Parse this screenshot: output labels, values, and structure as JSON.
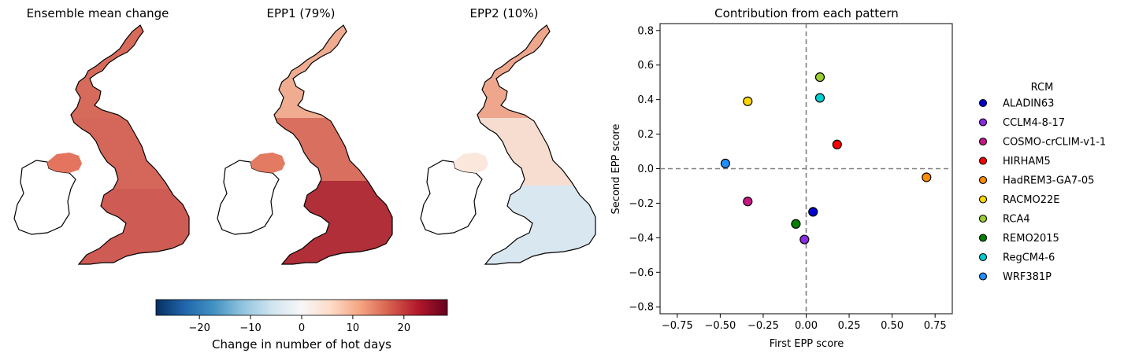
{
  "maps": [
    {
      "title": "Ensemble mean change",
      "fill": "#d4675a",
      "fill_south": "#cd5a52",
      "fill_ni": "#e5745f",
      "fill_north": "#d96f5c"
    },
    {
      "title": "EPP1 (79%)",
      "fill": "#d9705f",
      "fill_south": "#a51f2e",
      "fill_ni": "#e37a62",
      "fill_north": "#f3b69a"
    },
    {
      "title": "EPP2 (10%)",
      "fill": "#f7ddd0",
      "fill_south": "#d7e7f1",
      "fill_ni": "#fbe7dc",
      "fill_north": "#ec9c80"
    }
  ],
  "colorbar": {
    "label": "Change in number of hot days",
    "ticks": [
      "−20",
      "−10",
      "0",
      "10",
      "20"
    ],
    "tick_values": [
      -20,
      -10,
      0,
      10,
      20
    ],
    "range": [
      -28.5,
      28.5
    ],
    "colormap": "RdBu_r",
    "stops": [
      "#053061",
      "#2166ac",
      "#4393c3",
      "#92c5de",
      "#d1e5f0",
      "#f7f7f7",
      "#fddbc7",
      "#f4a582",
      "#d6604d",
      "#b2182b",
      "#67001f"
    ]
  },
  "chart_data": {
    "type": "scatter",
    "title": "Contribution from each pattern",
    "xlabel": "First EPP score",
    "ylabel": "Second EPP score",
    "xlim": [
      -0.85,
      0.85
    ],
    "ylim": [
      -0.84,
      0.84
    ],
    "xticks": [
      -0.75,
      -0.5,
      -0.25,
      0.0,
      0.25,
      0.5,
      0.75
    ],
    "xtick_labels": [
      "−0.75",
      "−0.50",
      "−0.25",
      "0.00",
      "0.25",
      "0.50",
      "0.75"
    ],
    "yticks": [
      -0.8,
      -0.6,
      -0.4,
      -0.2,
      0.0,
      0.2,
      0.4,
      0.6,
      0.8
    ],
    "ytick_labels": [
      "−0.8",
      "−0.6",
      "−0.4",
      "−0.2",
      "0.0",
      "0.2",
      "0.4",
      "0.6",
      "0.8"
    ],
    "reference_lines": {
      "x": 0.0,
      "y": 0.0,
      "style": "dashed",
      "color": "#808080"
    },
    "legend_title": "RCM",
    "legend_placement": "right, outside",
    "series": [
      {
        "name": "ALADIN63",
        "color": "#0000cd",
        "x": 0.04,
        "y": -0.25
      },
      {
        "name": "CCLM4-8-17",
        "color": "#8a2be2",
        "x": -0.01,
        "y": -0.41
      },
      {
        "name": "COSMO-crCLIM-v1-1",
        "color": "#c71585",
        "x": -0.34,
        "y": -0.19
      },
      {
        "name": "HIRHAM5",
        "color": "#ff0000",
        "x": 0.18,
        "y": 0.14
      },
      {
        "name": "HadREM3-GA7-05",
        "color": "#ff8c00",
        "x": 0.7,
        "y": -0.05
      },
      {
        "name": "RACMO22E",
        "color": "#ffd700",
        "x": -0.34,
        "y": 0.39
      },
      {
        "name": "RCA4",
        "color": "#9acd32",
        "x": 0.08,
        "y": 0.53
      },
      {
        "name": "REMO2015",
        "color": "#008000",
        "x": -0.06,
        "y": -0.32
      },
      {
        "name": "RegCM4-6",
        "color": "#00ced1",
        "x": 0.08,
        "y": 0.41
      },
      {
        "name": "WRF381P",
        "color": "#1e90ff",
        "x": -0.47,
        "y": 0.03
      }
    ]
  }
}
